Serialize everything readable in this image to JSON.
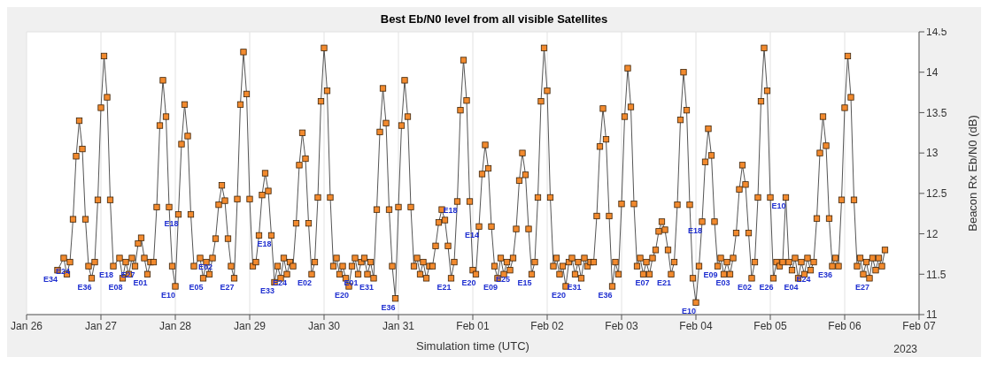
{
  "chart_data": {
    "type": "line",
    "title": "Best Eb/N0 level from all visible Satellites",
    "xlabel": "Simulation time (UTC)",
    "ylabel": "Beacon Rx Eb/N0 (dB)",
    "x": [
      "2023-01-26T10:00",
      "2023-01-26T12:00",
      "2023-01-26T13:00",
      "2023-01-26T14:00",
      "2023-01-26T15:00",
      "2023-01-26T16:00",
      "2023-01-26T17:00",
      "2023-01-26T18:00",
      "2023-01-26T19:00",
      "2023-01-26T20:00",
      "2023-01-26T21:00",
      "2023-01-26T22:00",
      "2023-01-26T23:00",
      "2023-01-27T00:00",
      "2023-01-27T01:00",
      "2023-01-27T02:00",
      "2023-01-27T03:00",
      "2023-01-27T04:00",
      "2023-01-27T06:00",
      "2023-01-27T07:00",
      "2023-01-27T08:00",
      "2023-01-27T09:00",
      "2023-01-27T10:00",
      "2023-01-27T11:00",
      "2023-01-27T12:00",
      "2023-01-27T13:00",
      "2023-01-27T14:00",
      "2023-01-27T15:00",
      "2023-01-27T16:00",
      "2023-01-27T17:00",
      "2023-01-27T18:00",
      "2023-01-27T19:00",
      "2023-01-27T20:00",
      "2023-01-27T21:00",
      "2023-01-27T22:00",
      "2023-01-27T23:00",
      "2023-01-28T00:00",
      "2023-01-28T01:00",
      "2023-01-28T02:00",
      "2023-01-28T03:00",
      "2023-01-28T04:00",
      "2023-01-28T05:00",
      "2023-01-28T06:00",
      "2023-01-28T08:00",
      "2023-01-28T09:00",
      "2023-01-28T10:00",
      "2023-01-28T11:00",
      "2023-01-28T12:00",
      "2023-01-28T13:00",
      "2023-01-28T14:00",
      "2023-01-28T15:00",
      "2023-01-28T16:00",
      "2023-01-28T17:00",
      "2023-01-28T18:00",
      "2023-01-28T19:00",
      "2023-01-28T20:00",
      "2023-01-28T21:00",
      "2023-01-28T22:00",
      "2023-01-28T23:00",
      "2023-01-29T00:00",
      "2023-01-29T01:00",
      "2023-01-29T02:00",
      "2023-01-29T03:00",
      "2023-01-29T04:00",
      "2023-01-29T05:00",
      "2023-01-29T06:00",
      "2023-01-29T07:00",
      "2023-01-29T08:00",
      "2023-01-29T09:00",
      "2023-01-29T10:00",
      "2023-01-29T11:00",
      "2023-01-29T12:00",
      "2023-01-29T13:00",
      "2023-01-29T14:00",
      "2023-01-29T15:00",
      "2023-01-29T16:00",
      "2023-01-29T17:00",
      "2023-01-29T18:00",
      "2023-01-29T19:00",
      "2023-01-29T20:00",
      "2023-01-29T21:00",
      "2023-01-29T22:00",
      "2023-01-29T23:00",
      "2023-01-30T00:00",
      "2023-01-30T01:00",
      "2023-01-30T02:00",
      "2023-01-30T03:00",
      "2023-01-30T04:00",
      "2023-01-30T05:00",
      "2023-01-30T06:00",
      "2023-01-30T07:00",
      "2023-01-30T08:00",
      "2023-01-30T09:00",
      "2023-01-30T10:00",
      "2023-01-30T11:00",
      "2023-01-30T12:00",
      "2023-01-30T13:00",
      "2023-01-30T14:00",
      "2023-01-30T15:00",
      "2023-01-30T16:00",
      "2023-01-30T17:00",
      "2023-01-30T18:00",
      "2023-01-30T19:00",
      "2023-01-30T20:00",
      "2023-01-30T21:00",
      "2023-01-30T22:00",
      "2023-01-30T23:00",
      "2023-01-31T00:00",
      "2023-01-31T01:00",
      "2023-01-31T02:00",
      "2023-01-31T03:00",
      "2023-01-31T04:00",
      "2023-01-31T05:00",
      "2023-01-31T06:00",
      "2023-01-31T07:00",
      "2023-01-31T08:00",
      "2023-01-31T09:00",
      "2023-01-31T10:00",
      "2023-01-31T11:00",
      "2023-01-31T12:00",
      "2023-01-31T13:00",
      "2023-01-31T14:00",
      "2023-01-31T15:00",
      "2023-01-31T16:00",
      "2023-01-31T17:00",
      "2023-01-31T18:00",
      "2023-01-31T19:00",
      "2023-01-31T20:00",
      "2023-01-31T21:00",
      "2023-01-31T22:00",
      "2023-01-31T23:00",
      "2023-02-01T00:00",
      "2023-02-01T01:00",
      "2023-02-01T02:00",
      "2023-02-01T03:00",
      "2023-02-01T04:00",
      "2023-02-01T05:00",
      "2023-02-01T06:00",
      "2023-02-01T07:00",
      "2023-02-01T08:00",
      "2023-02-01T09:00",
      "2023-02-01T10:00",
      "2023-02-01T11:00",
      "2023-02-01T12:00",
      "2023-02-01T13:00",
      "2023-02-01T14:00",
      "2023-02-01T15:00",
      "2023-02-01T16:00",
      "2023-02-01T17:00",
      "2023-02-01T18:00",
      "2023-02-01T19:00",
      "2023-02-01T20:00",
      "2023-02-01T21:00",
      "2023-02-01T22:00",
      "2023-02-01T23:00",
      "2023-02-02T00:00",
      "2023-02-02T01:00",
      "2023-02-02T02:00",
      "2023-02-02T03:00",
      "2023-02-02T04:00",
      "2023-02-02T05:00",
      "2023-02-02T06:00",
      "2023-02-02T07:00",
      "2023-02-02T08:00",
      "2023-02-02T09:00",
      "2023-02-02T10:00",
      "2023-02-02T11:00",
      "2023-02-02T12:00",
      "2023-02-02T13:00",
      "2023-02-02T14:00",
      "2023-02-02T15:00",
      "2023-02-02T16:00",
      "2023-02-02T17:00",
      "2023-02-02T18:00",
      "2023-02-02T19:00",
      "2023-02-02T20:00",
      "2023-02-02T21:00",
      "2023-02-02T22:00",
      "2023-02-02T23:00",
      "2023-02-03T00:00",
      "2023-02-03T01:00",
      "2023-02-03T02:00",
      "2023-02-03T03:00",
      "2023-02-03T04:00",
      "2023-02-03T05:00",
      "2023-02-03T06:00",
      "2023-02-03T07:00",
      "2023-02-03T08:00",
      "2023-02-03T09:00",
      "2023-02-03T10:00",
      "2023-02-03T11:00",
      "2023-02-03T12:00",
      "2023-02-03T13:00",
      "2023-02-03T14:00",
      "2023-02-03T15:00",
      "2023-02-03T16:00",
      "2023-02-03T17:00",
      "2023-02-03T18:00",
      "2023-02-03T19:00",
      "2023-02-03T20:00",
      "2023-02-03T21:00",
      "2023-02-03T22:00",
      "2023-02-03T23:00",
      "2023-02-04T00:00",
      "2023-02-04T01:00",
      "2023-02-04T02:00",
      "2023-02-04T03:00",
      "2023-02-04T04:00",
      "2023-02-04T05:00",
      "2023-02-04T06:00",
      "2023-02-04T07:00",
      "2023-02-04T08:00",
      "2023-02-04T09:00",
      "2023-02-04T10:00",
      "2023-02-04T11:00",
      "2023-02-04T12:00",
      "2023-02-04T13:00",
      "2023-02-04T14:00",
      "2023-02-04T15:00",
      "2023-02-04T16:00",
      "2023-02-04T17:00",
      "2023-02-04T18:00",
      "2023-02-04T19:00",
      "2023-02-04T20:00",
      "2023-02-04T21:00",
      "2023-02-04T22:00",
      "2023-02-04T23:00",
      "2023-02-05T00:00",
      "2023-02-05T01:00",
      "2023-02-05T02:00",
      "2023-02-05T03:00",
      "2023-02-05T04:00",
      "2023-02-05T05:00",
      "2023-02-05T06:00",
      "2023-02-05T07:00",
      "2023-02-05T08:00",
      "2023-02-05T09:00",
      "2023-02-05T10:00",
      "2023-02-05T11:00",
      "2023-02-05T12:00",
      "2023-02-05T13:00",
      "2023-02-05T14:00",
      "2023-02-05T15:00",
      "2023-02-05T16:00",
      "2023-02-05T17:00",
      "2023-02-05T18:00",
      "2023-02-05T19:00",
      "2023-02-05T20:00",
      "2023-02-05T21:00",
      "2023-02-05T22:00",
      "2023-02-05T23:00",
      "2023-02-06T00:00",
      "2023-02-06T01:00",
      "2023-02-06T02:00",
      "2023-02-06T03:00",
      "2023-02-06T04:00",
      "2023-02-06T05:00",
      "2023-02-06T06:00",
      "2023-02-06T07:00",
      "2023-02-06T08:00",
      "2023-02-06T09:00",
      "2023-02-06T10:00",
      "2023-02-06T11:00",
      "2023-02-06T12:00",
      "2023-02-06T13:00"
    ],
    "series": [
      {
        "color": "#f28a2e",
        "values": [
          11.55,
          11.7,
          11.5,
          11.65,
          12.18,
          12.96,
          13.4,
          13.05,
          12.18,
          11.6,
          11.45,
          11.65,
          12.42,
          13.56,
          14.2,
          13.69,
          12.42,
          11.6,
          11.7,
          11.45,
          11.65,
          11.5,
          11.7,
          11.6,
          11.88,
          11.95,
          11.7,
          11.5,
          11.65,
          11.65,
          12.33,
          13.34,
          13.9,
          13.45,
          12.33,
          11.6,
          11.35,
          12.24,
          13.11,
          13.6,
          13.21,
          12.24,
          11.6,
          11.7,
          11.45,
          11.65,
          11.5,
          11.7,
          11.94,
          12.36,
          12.6,
          12.41,
          11.94,
          11.6,
          11.45,
          12.43,
          13.6,
          14.25,
          13.73,
          12.43,
          11.6,
          11.65,
          11.98,
          12.48,
          12.75,
          12.53,
          11.98,
          11.4,
          11.6,
          11.45,
          11.7,
          11.5,
          11.65,
          11.6,
          12.13,
          12.85,
          13.25,
          12.93,
          12.13,
          11.5,
          11.65,
          12.45,
          13.64,
          14.3,
          13.77,
          12.45,
          11.6,
          11.7,
          11.5,
          11.6,
          11.45,
          11.35,
          11.6,
          11.7,
          11.5,
          11.65,
          11.7,
          11.5,
          11.65,
          11.45,
          12.3,
          13.26,
          13.8,
          13.37,
          12.3,
          11.6,
          11.2,
          12.33,
          13.34,
          13.9,
          13.45,
          12.33,
          11.6,
          11.7,
          11.5,
          11.65,
          11.45,
          11.6,
          11.6,
          11.85,
          12.14,
          12.3,
          12.17,
          11.85,
          11.45,
          11.65,
          12.4,
          13.53,
          14.15,
          13.65,
          12.4,
          11.55,
          11.5,
          12.09,
          12.74,
          13.1,
          12.81,
          12.09,
          11.6,
          11.45,
          11.7,
          11.5,
          11.65,
          11.55,
          11.7,
          12.06,
          12.66,
          13.0,
          12.73,
          12.06,
          11.5,
          11.65,
          12.45,
          13.64,
          14.3,
          13.77,
          12.45,
          11.6,
          11.7,
          11.5,
          11.6,
          11.35,
          11.65,
          11.7,
          11.5,
          11.65,
          11.45,
          11.7,
          11.6,
          11.65,
          11.65,
          12.22,
          13.08,
          13.55,
          13.17,
          12.22,
          11.35,
          11.65,
          11.5,
          12.37,
          13.45,
          14.05,
          13.57,
          12.37,
          11.6,
          11.7,
          11.5,
          11.65,
          11.5,
          11.7,
          11.8,
          12.03,
          12.15,
          12.05,
          11.8,
          11.5,
          11.65,
          12.36,
          13.41,
          14.0,
          13.53,
          12.36,
          11.45,
          11.15,
          11.6,
          12.15,
          12.89,
          13.3,
          12.97,
          12.15,
          11.6,
          11.7,
          11.5,
          11.65,
          11.5,
          11.7,
          12.01,
          12.55,
          12.85,
          12.61,
          12.01,
          11.45,
          11.65,
          12.45,
          13.64,
          14.3,
          13.77,
          12.45,
          11.45,
          11.65,
          11.6,
          11.65,
          12.45,
          11.65,
          11.55,
          11.7,
          11.45,
          11.65,
          11.5,
          11.7,
          11.55,
          11.65,
          12.19,
          13.0,
          13.45,
          13.09,
          12.19,
          11.6,
          11.7,
          11.6,
          12.42,
          13.56,
          14.2,
          13.69,
          12.42,
          11.6,
          11.7,
          11.5,
          11.65,
          11.45,
          11.7,
          11.55,
          11.7,
          11.6,
          11.8
        ]
      }
    ],
    "marker": "square",
    "line_style": "solid",
    "grid": true,
    "xlim": [
      "2023-01-26",
      "2023-02-07"
    ],
    "xticks": [
      {
        "value": "2023-01-26",
        "label": "Jan 26"
      },
      {
        "value": "2023-01-27",
        "label": "Jan 27"
      },
      {
        "value": "2023-01-28",
        "label": "Jan 28"
      },
      {
        "value": "2023-01-29",
        "label": "Jan 29"
      },
      {
        "value": "2023-01-30",
        "label": "Jan 30"
      },
      {
        "value": "2023-01-31",
        "label": "Jan 31"
      },
      {
        "value": "2023-02-01",
        "label": "Feb 01"
      },
      {
        "value": "2023-02-02",
        "label": "Feb 02"
      },
      {
        "value": "2023-02-03",
        "label": "Feb 03"
      },
      {
        "value": "2023-02-04",
        "label": "Feb 04"
      },
      {
        "value": "2023-02-05",
        "label": "Feb 05"
      },
      {
        "value": "2023-02-06",
        "label": "Feb 06"
      },
      {
        "value": "2023-02-07",
        "label": "Feb 07"
      }
    ],
    "ylim": [
      11,
      14.5
    ],
    "yticks": [
      11,
      11.5,
      12,
      12.5,
      13,
      13.5,
      14,
      14.5
    ],
    "annotations": [
      {
        "text": "E34",
        "x": "2023-01-26T10:00",
        "y": 11.55
      },
      {
        "text": "E24",
        "x": "2023-01-26T14:00",
        "y": 11.65
      },
      {
        "text": "E36",
        "x": "2023-01-26T21:00",
        "y": 11.45
      },
      {
        "text": "E18",
        "x": "2023-01-27T04:00",
        "y": 11.6
      },
      {
        "text": "E08",
        "x": "2023-01-27T07:00",
        "y": 11.45
      },
      {
        "text": "E27",
        "x": "2023-01-27T11:00",
        "y": 11.6
      },
      {
        "text": "E01",
        "x": "2023-01-27T15:00",
        "y": 11.5
      },
      {
        "text": "E10",
        "x": "2023-01-28T00:00",
        "y": 11.35
      },
      {
        "text": "E18",
        "x": "2023-01-28T01:00",
        "y": 12.24
      },
      {
        "text": "E05",
        "x": "2023-01-28T09:00",
        "y": 11.45
      },
      {
        "text": "E02",
        "x": "2023-01-28T12:00",
        "y": 11.7
      },
      {
        "text": "E27",
        "x": "2023-01-28T19:00",
        "y": 11.45
      },
      {
        "text": "E18",
        "x": "2023-01-29T07:00",
        "y": 11.98
      },
      {
        "text": "E33",
        "x": "2023-01-29T08:00",
        "y": 11.4
      },
      {
        "text": "E24",
        "x": "2023-01-29T12:00",
        "y": 11.5
      },
      {
        "text": "E02",
        "x": "2023-01-29T20:00",
        "y": 11.5
      },
      {
        "text": "E20",
        "x": "2023-01-30T08:00",
        "y": 11.35
      },
      {
        "text": "E01",
        "x": "2023-01-30T11:00",
        "y": 11.5
      },
      {
        "text": "E31",
        "x": "2023-01-30T16:00",
        "y": 11.45
      },
      {
        "text": "E36",
        "x": "2023-01-30T23:00",
        "y": 11.2
      },
      {
        "text": "E21",
        "x": "2023-01-31T17:00",
        "y": 11.45
      },
      {
        "text": "E18",
        "x": "2023-01-31T19:00",
        "y": 12.4
      },
      {
        "text": "E20",
        "x": "2023-02-01T01:00",
        "y": 11.5
      },
      {
        "text": "E14",
        "x": "2023-02-01T02:00",
        "y": 12.09
      },
      {
        "text": "E09",
        "x": "2023-02-01T08:00",
        "y": 11.45
      },
      {
        "text": "E25",
        "x": "2023-02-01T12:00",
        "y": 11.55
      },
      {
        "text": "E15",
        "x": "2023-02-01T19:00",
        "y": 11.5
      },
      {
        "text": "E20",
        "x": "2023-02-02T06:00",
        "y": 11.35
      },
      {
        "text": "E31",
        "x": "2023-02-02T11:00",
        "y": 11.45
      },
      {
        "text": "E36",
        "x": "2023-02-02T21:00",
        "y": 11.35
      },
      {
        "text": "E07",
        "x": "2023-02-03T09:00",
        "y": 11.5
      },
      {
        "text": "E21",
        "x": "2023-02-03T16:00",
        "y": 11.5
      },
      {
        "text": "E10",
        "x": "2023-02-04T00:00",
        "y": 11.15
      },
      {
        "text": "E18",
        "x": "2023-02-04T02:00",
        "y": 12.15
      },
      {
        "text": "E09",
        "x": "2023-02-04T07:00",
        "y": 11.6
      },
      {
        "text": "E03",
        "x": "2023-02-04T11:00",
        "y": 11.5
      },
      {
        "text": "E02",
        "x": "2023-02-04T18:00",
        "y": 11.45
      },
      {
        "text": "E26",
        "x": "2023-02-05T01:00",
        "y": 11.45
      },
      {
        "text": "E10",
        "x": "2023-02-05T05:00",
        "y": 12.45
      },
      {
        "text": "E04",
        "x": "2023-02-05T09:00",
        "y": 11.45
      },
      {
        "text": "E24",
        "x": "2023-02-05T13:00",
        "y": 11.55
      },
      {
        "text": "E36",
        "x": "2023-02-05T20:00",
        "y": 11.6
      },
      {
        "text": "E27",
        "x": "2023-02-06T08:00",
        "y": 11.45
      },
      "2023"
    ]
  }
}
